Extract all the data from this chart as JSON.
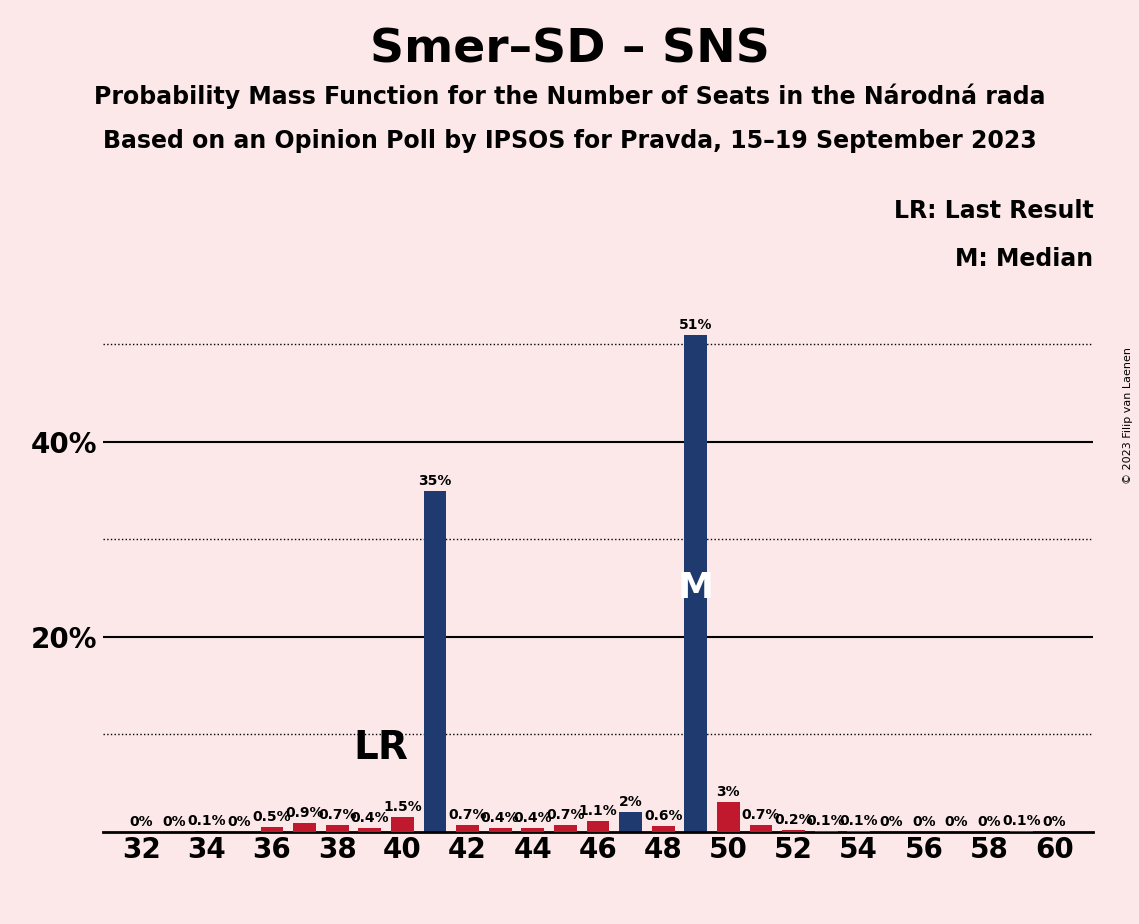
{
  "title": "Smer–SD – SNS",
  "subtitle1": "Probability Mass Function for the Number of Seats in the Národná rada",
  "subtitle2": "Based on an Opinion Poll by IPSOS for Pravda, 15–19 September 2023",
  "copyright": "© 2023 Filip van Laenen",
  "legend_lr": "LR: Last Result",
  "legend_m": "M: Median",
  "background_color": "#fce8e8",
  "bar_color_blue": "#1f3a6e",
  "bar_color_red": "#c0182c",
  "seats": [
    32,
    33,
    34,
    35,
    36,
    37,
    38,
    39,
    40,
    41,
    42,
    43,
    44,
    45,
    46,
    47,
    48,
    49,
    50,
    51,
    52,
    53,
    54,
    55,
    56,
    57,
    58,
    59,
    60
  ],
  "pmf_values": [
    0.0,
    0.0,
    0.1,
    0.0,
    0.5,
    0.9,
    0.7,
    0.4,
    1.5,
    35.0,
    0.7,
    0.4,
    0.4,
    0.7,
    1.1,
    2.0,
    0.6,
    51.0,
    3.0,
    0.7,
    0.2,
    0.1,
    0.1,
    0.0,
    0.0,
    0.0,
    0.0,
    0.1,
    0.0
  ],
  "lr_values": [
    0.0,
    0.0,
    0.0,
    0.0,
    0.5,
    0.9,
    0.7,
    0.4,
    1.5,
    0.0,
    0.7,
    0.4,
    0.4,
    0.7,
    1.1,
    0.0,
    0.6,
    0.0,
    3.0,
    0.7,
    0.2,
    0.1,
    0.1,
    0.0,
    0.0,
    0.0,
    0.0,
    0.1,
    0.0
  ],
  "pmf_labels": [
    "0%",
    "0%",
    "0.1%",
    "0%",
    "0.5%",
    "0.9%",
    "0.7%",
    "0.4%",
    "1.5%",
    "35%",
    "0.7%",
    "0.4%",
    "0.4%",
    "0.7%",
    "1.1%",
    "2%",
    "0.6%",
    "51%",
    "3%",
    "0.7%",
    "0.2%",
    "0.1%",
    "0.1%",
    "0%",
    "0%",
    "0%",
    "0%",
    "0.1%",
    "0%"
  ],
  "lr_seat": 40,
  "median_seat": 49,
  "ylim": [
    0,
    55
  ],
  "solid_yticks": [
    20,
    40
  ],
  "dotted_yticks": [
    10,
    30,
    50
  ],
  "bar_width": 0.7,
  "title_fontsize": 34,
  "subtitle_fontsize": 17,
  "bar_label_fontsize": 10,
  "tick_fontsize": 20,
  "legend_fontsize": 17,
  "lr_fontsize": 28,
  "m_fontsize": 26
}
